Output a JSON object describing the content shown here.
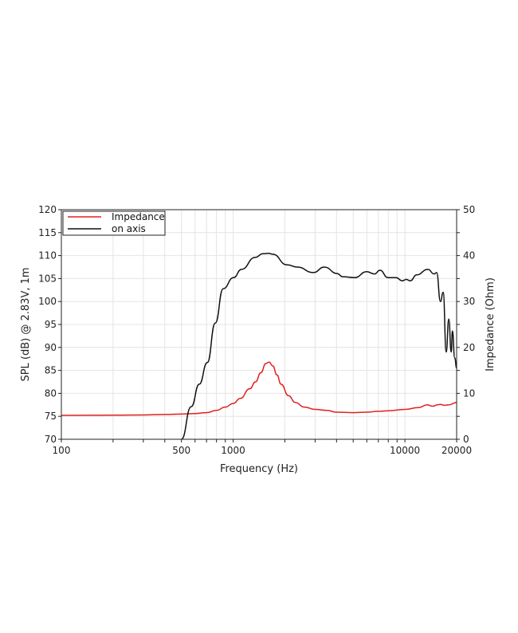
{
  "chart_data": {
    "type": "line",
    "xlabel": "Frequency (Hz)",
    "ylabel": "SPL (dB) @ 2.83V, 1m",
    "y2label": "Impedance (Ohm)",
    "x_scale": "log",
    "xlim": [
      100,
      20000
    ],
    "ylim": [
      70,
      120
    ],
    "y2lim": [
      0,
      50
    ],
    "grid": true,
    "legend_position": "top-left",
    "x_tick_labels": [
      "100",
      "500",
      "1000",
      "10000",
      "20000"
    ],
    "x_tick_values": [
      100,
      500,
      1000,
      10000,
      20000
    ],
    "y_ticks": [
      70,
      75,
      80,
      85,
      90,
      95,
      100,
      105,
      110,
      115,
      120
    ],
    "y2_ticks": [
      0,
      10,
      20,
      30,
      40,
      50
    ],
    "series": [
      {
        "name": "Impedance",
        "axis": "right",
        "color": "#e02020",
        "x": [
          100,
          200,
          300,
          400,
          500,
          600,
          700,
          800,
          900,
          1000,
          1100,
          1250,
          1350,
          1450,
          1550,
          1620,
          1700,
          1800,
          1900,
          2100,
          2300,
          2600,
          3000,
          3500,
          4000,
          5000,
          6000,
          7000,
          8000,
          10000,
          12000,
          13500,
          14500,
          15500,
          16000,
          17000,
          18000,
          20000
        ],
        "y": [
          5.2,
          5.25,
          5.3,
          5.4,
          5.5,
          5.6,
          5.8,
          6.3,
          7.0,
          7.8,
          8.9,
          11.0,
          12.5,
          14.5,
          16.5,
          16.8,
          16.0,
          14.0,
          12.0,
          9.5,
          8.0,
          7.0,
          6.5,
          6.3,
          5.9,
          5.8,
          5.9,
          6.1,
          6.2,
          6.5,
          6.9,
          7.5,
          7.2,
          7.5,
          7.6,
          7.4,
          7.5,
          8.0
        ]
      },
      {
        "name": "on axis",
        "axis": "left",
        "color": "#111111",
        "x": [
          500,
          570,
          635,
          707,
          787,
          875,
          1005,
          1119,
          1342,
          1493,
          1608,
          1700,
          2055,
          2365,
          2927,
          3397,
          4033,
          4336,
          5100,
          5990,
          6650,
          7160,
          7960,
          8880,
          9660,
          10180,
          10740,
          11700,
          13600,
          14800,
          15300,
          16100,
          16700,
          17400,
          18000,
          18600,
          18900,
          19500,
          20000
        ],
        "y": [
          70,
          77.1,
          82,
          86.7,
          95.3,
          102.8,
          105.2,
          107,
          109.6,
          110.4,
          110.5,
          110.3,
          108,
          107.5,
          106.3,
          107.5,
          106.1,
          105.4,
          105.2,
          106.5,
          106,
          106.8,
          105.2,
          105.2,
          104.5,
          104.8,
          104.5,
          105.8,
          107,
          106,
          106.3,
          100,
          102,
          89,
          96.2,
          89,
          93.6,
          87.7,
          85.5
        ]
      }
    ]
  }
}
